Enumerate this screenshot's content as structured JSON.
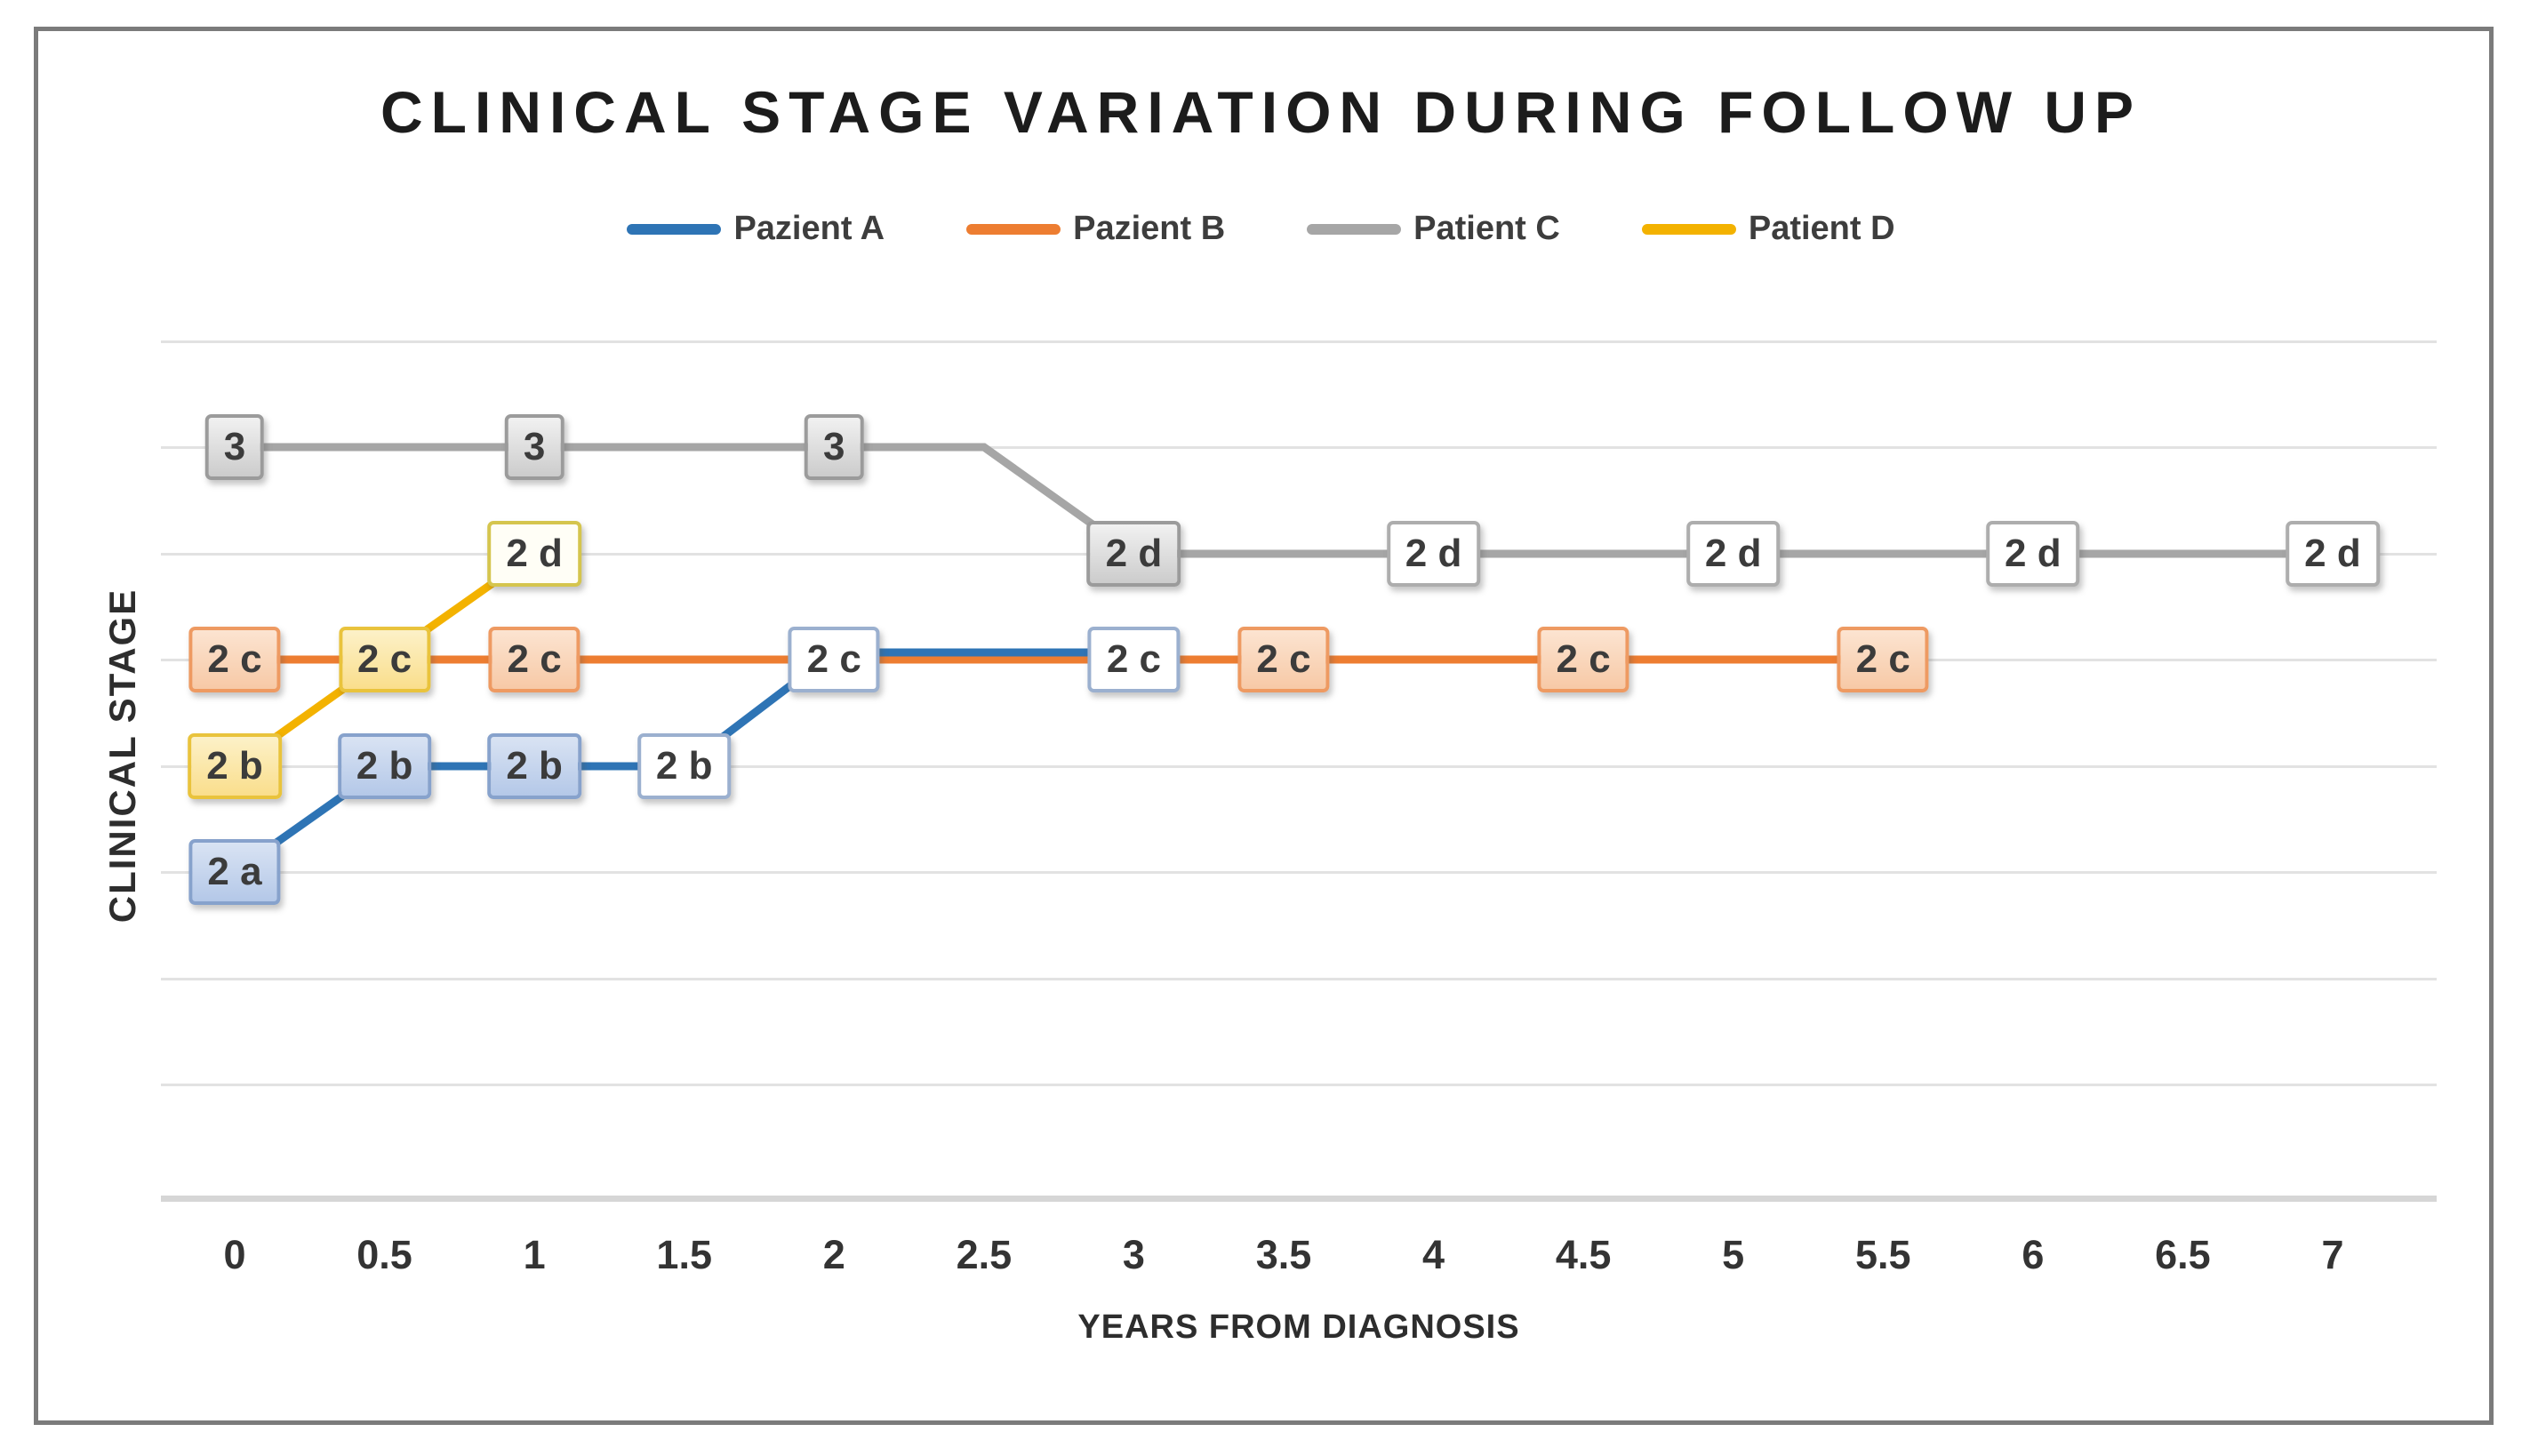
{
  "figure": {
    "title": "CLINICAL STAGE VARIATION DURING FOLLOW UP",
    "legend": [
      {
        "id": "A",
        "label": "Pazient A",
        "color": "#2e74b5"
      },
      {
        "id": "B",
        "label": "Pazient B",
        "color": "#ed7d31"
      },
      {
        "id": "C",
        "label": "Patient C",
        "color": "#a6a6a6"
      },
      {
        "id": "D",
        "label": "Patient D",
        "color": "#f3b200"
      }
    ]
  },
  "chart_data": {
    "type": "line",
    "title": "CLINICAL STAGE VARIATION DURING FOLLOW UP",
    "xlabel": "YEARS FROM DIAGNOSIS",
    "ylabel": "CLINICAL STAGE",
    "x_ticks": [
      "0",
      "0.5",
      "1",
      "1.5",
      "2",
      "2.5",
      "3",
      "3.5",
      "4",
      "4.5",
      "5",
      "5.5",
      "6",
      "6.5",
      "7"
    ],
    "x_range": [
      0,
      7
    ],
    "y_categories": [
      "2a",
      "2b",
      "2c",
      "2d",
      "3"
    ],
    "grid": true,
    "legend_position": "top-center",
    "series": [
      {
        "id": "C",
        "name": "Patient C",
        "color": "#a6a6a6",
        "line": [
          [
            0,
            "3"
          ],
          [
            2.5,
            "3"
          ],
          [
            3,
            "2d"
          ],
          [
            7,
            "2d"
          ]
        ],
        "markers": [
          {
            "x": 0,
            "stage": "3",
            "label": "3",
            "variant": "filled"
          },
          {
            "x": 1,
            "stage": "3",
            "label": "3",
            "variant": "filled"
          },
          {
            "x": 2,
            "stage": "3",
            "label": "3",
            "variant": "filled"
          },
          {
            "x": 3,
            "stage": "2d",
            "label": "2 d",
            "variant": "filled"
          },
          {
            "x": 4,
            "stage": "2d",
            "label": "2 d",
            "variant": "open"
          },
          {
            "x": 5,
            "stage": "2d",
            "label": "2 d",
            "variant": "open"
          },
          {
            "x": 6,
            "stage": "2d",
            "label": "2 d",
            "variant": "open"
          },
          {
            "x": 7,
            "stage": "2d",
            "label": "2 d",
            "variant": "open"
          }
        ]
      },
      {
        "id": "B",
        "name": "Pazient B",
        "color": "#ed7d31",
        "line": [
          [
            0,
            "2c"
          ],
          [
            5.5,
            "2c"
          ]
        ],
        "markers": [
          {
            "x": 0,
            "stage": "2c",
            "label": "2 c",
            "variant": "filled"
          },
          {
            "x": 1,
            "stage": "2c",
            "label": "2 c",
            "variant": "filled"
          },
          {
            "x": 3.5,
            "stage": "2c",
            "label": "2 c",
            "variant": "filled"
          },
          {
            "x": 4.5,
            "stage": "2c",
            "label": "2 c",
            "variant": "filled"
          },
          {
            "x": 5.5,
            "stage": "2c",
            "label": "2 c",
            "variant": "filled"
          }
        ]
      },
      {
        "id": "D",
        "name": "Patient D",
        "color": "#f3b200",
        "line": [
          [
            0,
            "2b"
          ],
          [
            0.5,
            "2c"
          ],
          [
            1,
            "2d"
          ]
        ],
        "markers": [
          {
            "x": 0,
            "stage": "2b",
            "label": "2 b",
            "variant": "filled"
          },
          {
            "x": 0.5,
            "stage": "2c",
            "label": "2 c",
            "variant": "filled"
          },
          {
            "x": 1,
            "stage": "2d",
            "label": "2 d",
            "variant": "open"
          }
        ]
      },
      {
        "id": "A",
        "name": "Pazient A",
        "color": "#2e74b5",
        "line": [
          [
            0,
            "2a"
          ],
          [
            0.5,
            "2b"
          ],
          [
            1,
            "2b"
          ],
          [
            1.5,
            "2b"
          ],
          [
            2,
            "2c",
            -8
          ],
          [
            3,
            "2c",
            -8
          ]
        ],
        "markers": [
          {
            "x": 0,
            "stage": "2a",
            "label": "2 a",
            "variant": "filled"
          },
          {
            "x": 0.5,
            "stage": "2b",
            "label": "2 b",
            "variant": "filled"
          },
          {
            "x": 1,
            "stage": "2b",
            "label": "2 b",
            "variant": "filled"
          },
          {
            "x": 1.5,
            "stage": "2b",
            "label": "2 b",
            "variant": "open"
          },
          {
            "x": 2,
            "stage": "2c",
            "label": "2 c",
            "variant": "open"
          },
          {
            "x": 3,
            "stage": "2c",
            "label": "2 c",
            "variant": "open"
          }
        ]
      }
    ]
  }
}
